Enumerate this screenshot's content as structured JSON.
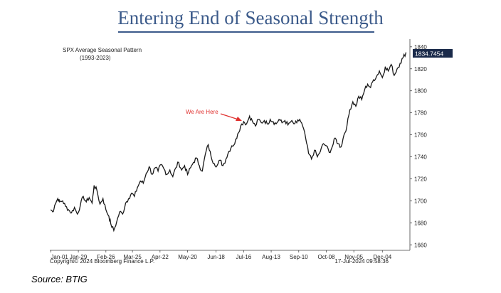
{
  "title": "Entering End of Seasonal Strength",
  "source": "Source: BTIG",
  "colors": {
    "title": "#3b5a8a",
    "line": "#1a1a1a",
    "annotation": "#e0302e",
    "last_value_bg": "#1a2a4a"
  },
  "chart_data": {
    "type": "line",
    "legend_title": "SPX Average Seasonal Pattern",
    "legend_subtitle": "(1993-2023)",
    "annotation": "We Are Here",
    "copyright": "Copyright© 2024 Bloomberg Finance L.P.",
    "timestamp": "17-Jul-2024 09:58:36",
    "last_value_label": "1834.7454",
    "y_ticks": [
      1660,
      1680,
      1700,
      1720,
      1740,
      1760,
      1780,
      1800,
      1820,
      1840
    ],
    "y_tick_labels": [
      "1660",
      "1680",
      "1700",
      "1720",
      "1740",
      "1760",
      "1780",
      "1800",
      "1820",
      "1840"
    ],
    "x_tick_labels": [
      "Jan-01",
      "Jan-29",
      "Feb-26",
      "Mar-25",
      "Apr-22",
      "May-20",
      "Jun-18",
      "Jul-16",
      "Aug-13",
      "Sep-10",
      "Oct-08",
      "Nov-05",
      "Dec-04"
    ],
    "x_tick_days": [
      1,
      29,
      57,
      84,
      112,
      140,
      169,
      197,
      225,
      253,
      281,
      309,
      338
    ],
    "ylim": [
      1655,
      1847
    ],
    "x": [
      1,
      3,
      5,
      8,
      10,
      13,
      16,
      19,
      22,
      25,
      28,
      31,
      34,
      37,
      40,
      43,
      45,
      48,
      51,
      54,
      57,
      60,
      62,
      65,
      68,
      71,
      74,
      77,
      80,
      83,
      86,
      89,
      92,
      95,
      98,
      101,
      104,
      107,
      110,
      113,
      116,
      119,
      122,
      125,
      128,
      131,
      134,
      137,
      140,
      143,
      146,
      149,
      152,
      155,
      158,
      161,
      164,
      167,
      170,
      173,
      176,
      179,
      182,
      185,
      188,
      191,
      194,
      197,
      200,
      203,
      206,
      209,
      212,
      215,
      218,
      221,
      224,
      227,
      230,
      233,
      236,
      239,
      242,
      245,
      248,
      251,
      254,
      257,
      260,
      263,
      266,
      269,
      272,
      275,
      278,
      281,
      284,
      287,
      290,
      293,
      296,
      299,
      302,
      305,
      308,
      311,
      314,
      317,
      320,
      323,
      326,
      329,
      332,
      335,
      338,
      341,
      344,
      347,
      350,
      353,
      356,
      359,
      362
    ],
    "y": [
      1692,
      1690,
      1696,
      1702,
      1699,
      1700,
      1695,
      1692,
      1689,
      1694,
      1688,
      1696,
      1704,
      1699,
      1703,
      1698,
      1714,
      1709,
      1697,
      1702,
      1692,
      1686,
      1679,
      1673,
      1681,
      1690,
      1688,
      1698,
      1702,
      1707,
      1704,
      1712,
      1718,
      1716,
      1725,
      1731,
      1724,
      1730,
      1727,
      1733,
      1729,
      1724,
      1728,
      1722,
      1730,
      1735,
      1728,
      1732,
      1724,
      1730,
      1735,
      1739,
      1732,
      1727,
      1742,
      1751,
      1740,
      1734,
      1732,
      1737,
      1732,
      1738,
      1745,
      1750,
      1752,
      1761,
      1768,
      1772,
      1770,
      1777,
      1772,
      1768,
      1774,
      1771,
      1773,
      1770,
      1774,
      1772,
      1770,
      1774,
      1771,
      1773,
      1769,
      1772,
      1770,
      1771,
      1774,
      1768,
      1757,
      1743,
      1738,
      1746,
      1740,
      1745,
      1752,
      1750,
      1744,
      1749,
      1757,
      1752,
      1749,
      1760,
      1768,
      1783,
      1790,
      1786,
      1795,
      1792,
      1801,
      1806,
      1803,
      1810,
      1813,
      1818,
      1812,
      1822,
      1818,
      1824,
      1814,
      1820,
      1825,
      1830,
      1835
    ]
  }
}
